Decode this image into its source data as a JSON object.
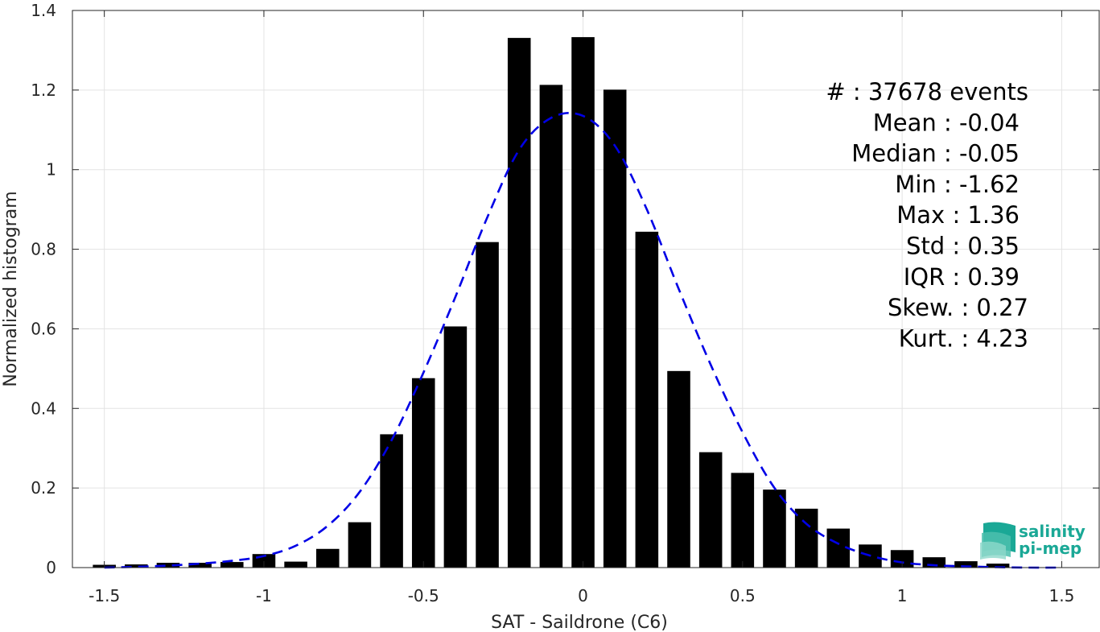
{
  "chart_data": {
    "type": "bar",
    "xlabel": "SAT - Saildrone (C6)",
    "ylabel": "Normalized histogram",
    "xlim": [
      -1.6,
      1.62
    ],
    "ylim": [
      0,
      1.4
    ],
    "xticks": [
      -1.5,
      -1,
      -0.5,
      0,
      0.5,
      1,
      1.5
    ],
    "xtick_labels": [
      "-1.5",
      "-1",
      "-0.5",
      "0",
      "0.5",
      "1",
      "1.5"
    ],
    "yticks": [
      0,
      0.2,
      0.4,
      0.6,
      0.8,
      1,
      1.2,
      1.4
    ],
    "ytick_labels": [
      "0",
      "0.2",
      "0.4",
      "0.6",
      "0.8",
      "1",
      "1.2",
      "1.4"
    ],
    "grid": true,
    "bar_color": "#000000",
    "bar_width": 0.072,
    "bins": [
      -1.5,
      -1.4,
      -1.3,
      -1.2,
      -1.1,
      -1.0,
      -0.9,
      -0.8,
      -0.7,
      -0.6,
      -0.5,
      -0.4,
      -0.3,
      -0.2,
      -0.1,
      0.0,
      0.1,
      0.2,
      0.3,
      0.4,
      0.5,
      0.6,
      0.7,
      0.8,
      0.9,
      1.0,
      1.1,
      1.2,
      1.3
    ],
    "values": [
      0.007,
      0.008,
      0.012,
      0.012,
      0.014,
      0.034,
      0.015,
      0.047,
      0.114,
      0.335,
      0.476,
      0.606,
      0.818,
      1.331,
      1.213,
      1.333,
      1.201,
      0.844,
      0.494,
      0.29,
      0.238,
      0.196,
      0.148,
      0.098,
      0.058,
      0.044,
      0.026,
      0.016,
      0.01
    ],
    "fit_curve": {
      "style": "dashed",
      "color": "#0000e6",
      "x": [
        -1.5,
        -1.4,
        -1.3,
        -1.2,
        -1.1,
        -1.0,
        -0.9,
        -0.8,
        -0.7,
        -0.6,
        -0.5,
        -0.4,
        -0.3,
        -0.2,
        -0.1,
        0.0,
        0.1,
        0.2,
        0.3,
        0.4,
        0.5,
        0.6,
        0.7,
        0.8,
        0.9,
        1.0,
        1.1,
        1.2,
        1.3,
        1.4,
        1.5
      ],
      "y": [
        0.0,
        0.002,
        0.005,
        0.01,
        0.017,
        0.029,
        0.055,
        0.105,
        0.19,
        0.32,
        0.49,
        0.68,
        0.88,
        1.05,
        1.13,
        1.135,
        1.06,
        0.9,
        0.7,
        0.51,
        0.34,
        0.2,
        0.11,
        0.06,
        0.03,
        0.013,
        0.006,
        0.003,
        0.001,
        0.0,
        0.0
      ]
    },
    "stats": [
      "#  : 37678 events",
      "Mean : -0.04",
      "Median : -0.05",
      "Min : -1.62",
      "Max : 1.36",
      "Std : 0.35",
      "IQR : 0.39",
      "Skew. : 0.27",
      "Kurt. : 4.23"
    ]
  },
  "logo": {
    "line1": "salinity",
    "line2": "pi-mep",
    "color": "#1aa896"
  }
}
